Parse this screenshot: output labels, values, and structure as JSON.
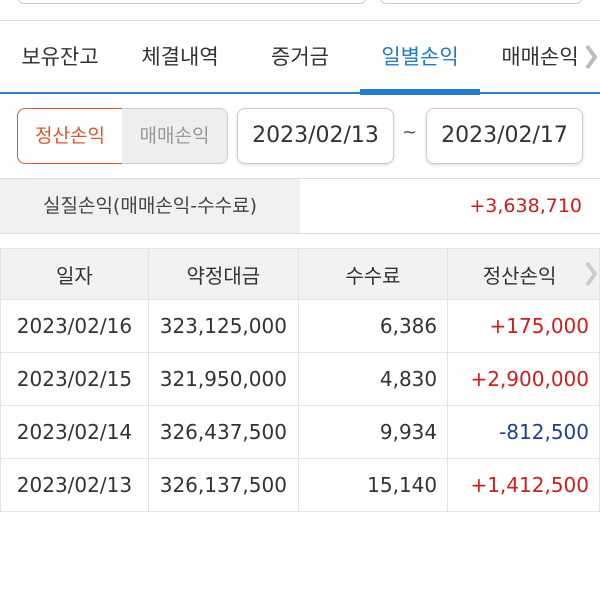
{
  "tabs": [
    {
      "label": "보유잔고"
    },
    {
      "label": "체결내역"
    },
    {
      "label": "증거금"
    },
    {
      "label": "일별손익",
      "active": true
    },
    {
      "label": "매매손익"
    }
  ],
  "toggle": {
    "settle_label": "정산손익",
    "trade_label": "매매손익",
    "selected": "정산손익"
  },
  "date_range": {
    "start": "2023/02/13",
    "separator": "~",
    "end": "2023/02/17"
  },
  "summary": {
    "label": "실질손익(매매손익-수수료)",
    "value": "+3,638,710"
  },
  "table": {
    "headers": [
      "일자",
      "약정대금",
      "수수료",
      "정산손익"
    ],
    "rows": [
      {
        "date": "2023/02/16",
        "amount": "323,125,000",
        "fee": "6,386",
        "pnl": "+175,000"
      },
      {
        "date": "2023/02/15",
        "amount": "321,950,000",
        "fee": "4,830",
        "pnl": "+2,900,000"
      },
      {
        "date": "2023/02/14",
        "amount": "326,437,500",
        "fee": "9,934",
        "pnl": "-812,500"
      },
      {
        "date": "2023/02/13",
        "amount": "326,137,500",
        "fee": "15,140",
        "pnl": "+1,412,500"
      }
    ]
  },
  "colors": {
    "accent": "#1f7bd3",
    "positive": "#d01c1c",
    "negative": "#1d3f9c",
    "toggle_active": "#e0552a"
  }
}
